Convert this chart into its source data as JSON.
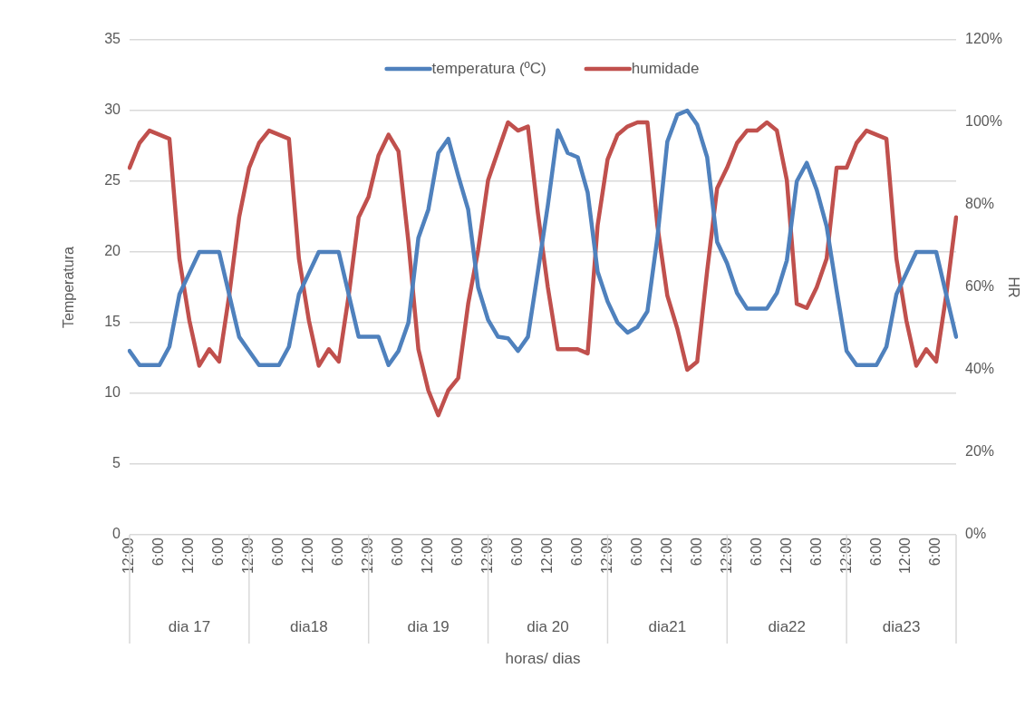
{
  "chart_data": {
    "type": "line",
    "xlabel": "horas/ dias",
    "ylabel": "Temperatura",
    "y2label": "HR",
    "categories": [
      "12:00",
      null,
      null,
      "6:00",
      null,
      null,
      "12:00",
      null,
      null,
      "6:00",
      null,
      null,
      "12:00",
      null,
      null,
      "6:00",
      null,
      null,
      "12:00",
      null,
      null,
      "6:00",
      null,
      null,
      "12:00",
      null,
      null,
      "6:00",
      null,
      null,
      "12:00",
      null,
      null,
      "6:00",
      null,
      null,
      "12:00",
      null,
      null,
      "6:00",
      null,
      null,
      "12:00",
      null,
      null,
      "6:00",
      null,
      null,
      "12:00",
      null,
      null,
      "6:00",
      null,
      null,
      "12:00",
      null,
      null,
      "6:00",
      null,
      null,
      "12:00",
      null,
      null,
      "6:00",
      null,
      null,
      "12:00",
      null,
      null,
      "6:00",
      null,
      null,
      "12:00",
      null,
      null,
      "6:00",
      null,
      null,
      "12:00",
      null,
      null,
      "6:00",
      null,
      null
    ],
    "series": [
      {
        "name": "temperatura (ºC)",
        "color": "#4f81bd",
        "values": [
          13,
          12,
          12,
          12,
          13.3,
          17,
          18.5,
          20,
          20,
          20,
          17,
          14,
          13,
          12,
          12,
          12,
          13.3,
          17,
          18.5,
          20,
          20,
          20,
          17,
          14,
          14,
          14,
          12,
          13,
          15,
          21,
          23,
          27,
          28,
          25.4,
          23,
          17.5,
          15.2,
          14,
          13.9,
          13,
          14,
          18.6,
          23.3,
          28.6,
          27,
          26.7,
          24.2,
          18.6,
          16.5,
          15,
          14.3,
          14.7,
          15.8,
          21,
          27.8,
          29.7,
          30,
          29,
          26.7,
          20.7,
          19.2,
          17.1,
          16,
          16,
          16,
          17.1,
          19.4,
          25,
          26.3,
          24.4,
          21.8,
          17.3,
          13,
          12,
          12,
          12,
          13.3,
          17,
          18.5,
          20,
          20,
          20,
          17,
          14
        ]
      },
      {
        "name": "humidade",
        "color": "#c0504d",
        "axis": "y2",
        "values": [
          89,
          95,
          98,
          97,
          96,
          67,
          52,
          41,
          45,
          42,
          58,
          77,
          89,
          95,
          98,
          97,
          96,
          67,
          52,
          41,
          45,
          42,
          58,
          77,
          82,
          92,
          97,
          93,
          71,
          45,
          35,
          29,
          35,
          38,
          56,
          69,
          86,
          93,
          100,
          98,
          99,
          78,
          60,
          45,
          45,
          45,
          44,
          75,
          91,
          97,
          99,
          100,
          100,
          75,
          58,
          50,
          40,
          42,
          64,
          84,
          89,
          95,
          98,
          98,
          100,
          98,
          86,
          56,
          55,
          60,
          67,
          89,
          89,
          95,
          98,
          97,
          96,
          67,
          52,
          41,
          45,
          42,
          58,
          77
        ]
      }
    ],
    "ylim": [
      0,
      35
    ],
    "yticks": [
      0,
      5,
      10,
      15,
      20,
      25,
      30,
      35
    ],
    "y2lim": [
      0,
      120
    ],
    "y2ticks": [
      {
        "value": 0,
        "label": "0%"
      },
      {
        "value": 20,
        "label": "20%"
      },
      {
        "value": 40,
        "label": "40%"
      },
      {
        "value": 60,
        "label": "60%"
      },
      {
        "value": 80,
        "label": "80%"
      },
      {
        "value": 100,
        "label": "100%"
      },
      {
        "value": 120,
        "label": "120%"
      }
    ],
    "annotations": [
      "dia 17",
      "dia18",
      "dia 19",
      "dia 20",
      "dia21",
      "dia22",
      "dia23"
    ],
    "grid": "y",
    "legend": "top",
    "marker": "none",
    "line_style": "solid"
  }
}
